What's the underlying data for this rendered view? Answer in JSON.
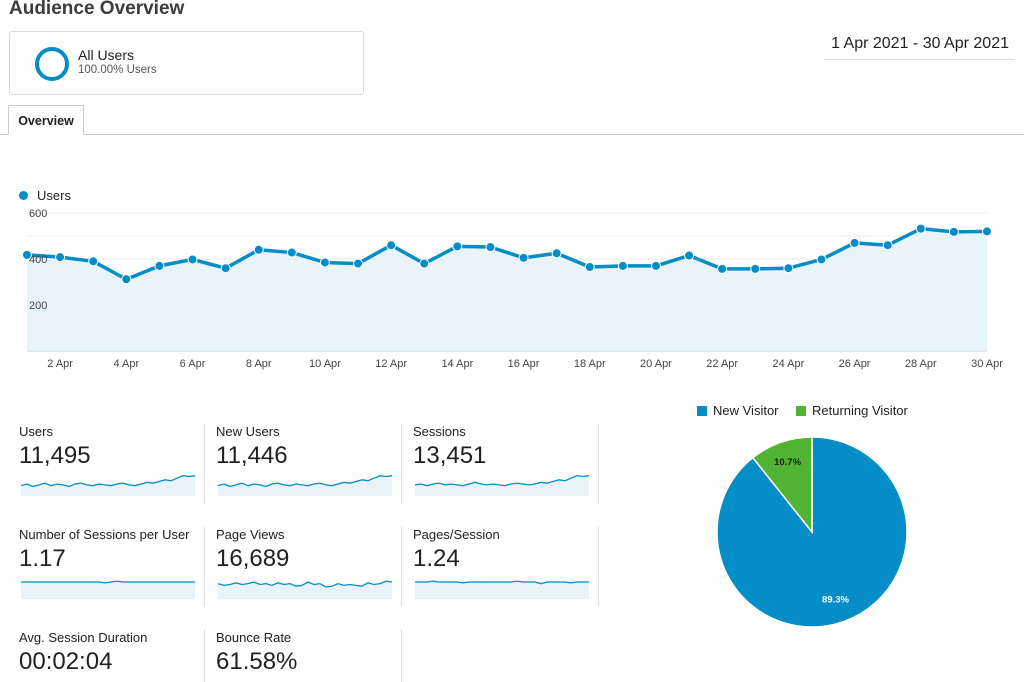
{
  "page": {
    "title": "Audience Overview"
  },
  "segment": {
    "name": "All Users",
    "share": "100.00% Users"
  },
  "date_range": "1 Apr 2021 - 30 Apr 2021",
  "tabs": [
    {
      "label": "Overview"
    }
  ],
  "colors": {
    "accent": "#058dc7",
    "new_visitor": "#058dc7",
    "returning_visitor": "#50b432",
    "area_fill": "#e8f3fa"
  },
  "chart_data": [
    {
      "type": "area",
      "legend": [
        "Users"
      ],
      "x": [
        "1 Apr",
        "2 Apr",
        "3 Apr",
        "4 Apr",
        "5 Apr",
        "6 Apr",
        "7 Apr",
        "8 Apr",
        "9 Apr",
        "10 Apr",
        "11 Apr",
        "12 Apr",
        "13 Apr",
        "14 Apr",
        "15 Apr",
        "16 Apr",
        "17 Apr",
        "18 Apr",
        "19 Apr",
        "20 Apr",
        "21 Apr",
        "22 Apr",
        "23 Apr",
        "24 Apr",
        "25 Apr",
        "26 Apr",
        "27 Apr",
        "28 Apr",
        "29 Apr",
        "30 Apr"
      ],
      "xticks": [
        "2 Apr",
        "4 Apr",
        "6 Apr",
        "8 Apr",
        "10 Apr",
        "12 Apr",
        "14 Apr",
        "16 Apr",
        "18 Apr",
        "20 Apr",
        "22 Apr",
        "24 Apr",
        "26 Apr",
        "28 Apr",
        "30 Apr"
      ],
      "yticks": [
        "200",
        "400",
        "600"
      ],
      "ylim": [
        0,
        600
      ],
      "series": [
        {
          "name": "Users",
          "values": [
            418,
            408,
            390,
            312,
            370,
            398,
            360,
            440,
            428,
            385,
            380,
            460,
            380,
            455,
            452,
            405,
            425,
            365,
            370,
            370,
            415,
            357,
            357,
            360,
            398,
            470,
            460,
            532,
            518,
            520
          ]
        }
      ]
    },
    {
      "type": "pie",
      "legend": [
        "New Visitor",
        "Returning Visitor"
      ],
      "slices": [
        {
          "name": "New Visitor",
          "value": 89.3,
          "label": "89.3%"
        },
        {
          "name": "Returning Visitor",
          "value": 10.7,
          "label": "10.7%"
        }
      ]
    }
  ],
  "metrics": [
    {
      "label": "Users",
      "value": "11,495",
      "spark": [
        10,
        12,
        9,
        11,
        13,
        10,
        12,
        11,
        9,
        12,
        13,
        11,
        10,
        12,
        11,
        10,
        12,
        13,
        11,
        10,
        12,
        14,
        13,
        15,
        17,
        16,
        19,
        22,
        21,
        22
      ]
    },
    {
      "label": "New Users",
      "value": "11,446",
      "spark": [
        10,
        12,
        9,
        11,
        13,
        10,
        12,
        11,
        9,
        12,
        13,
        11,
        10,
        12,
        11,
        10,
        12,
        13,
        11,
        10,
        12,
        14,
        13,
        15,
        17,
        16,
        19,
        22,
        21,
        22
      ]
    },
    {
      "label": "Sessions",
      "value": "13,451",
      "spark": [
        11,
        12,
        10,
        12,
        13,
        11,
        12,
        11,
        10,
        12,
        14,
        12,
        11,
        12,
        11,
        10,
        12,
        13,
        12,
        11,
        12,
        14,
        13,
        15,
        17,
        16,
        19,
        22,
        21,
        22
      ]
    },
    {
      "label": "Number of Sessions per User",
      "value": "1.17",
      "spark": [
        18,
        18,
        18,
        18,
        18,
        18,
        18,
        18,
        18,
        18,
        18,
        18,
        18,
        18,
        17,
        18,
        19,
        18,
        18,
        18,
        18,
        18,
        18,
        18,
        18,
        18,
        18,
        18,
        18,
        18
      ]
    },
    {
      "label": "Page Views",
      "value": "16,689",
      "spark": [
        16,
        14,
        15,
        17,
        15,
        16,
        18,
        15,
        16,
        14,
        17,
        15,
        16,
        13,
        14,
        18,
        15,
        16,
        12,
        13,
        16,
        14,
        15,
        14,
        13,
        17,
        15,
        16,
        19,
        18
      ]
    },
    {
      "label": "Pages/Session",
      "value": "1.24",
      "spark": [
        18,
        18,
        18,
        19,
        18,
        18,
        18,
        18,
        17,
        18,
        18,
        18,
        18,
        18,
        18,
        18,
        18,
        19,
        18,
        18,
        18,
        16,
        18,
        18,
        18,
        18,
        17,
        18,
        18,
        18
      ]
    },
    {
      "label": "Avg. Session Duration",
      "value": "00:02:04",
      "spark": [
        14,
        12,
        15,
        11,
        16,
        13,
        12,
        15,
        11,
        14,
        16,
        12,
        13,
        15,
        12,
        14,
        11,
        16,
        13,
        12,
        15,
        11,
        14,
        13,
        16,
        12,
        15,
        13,
        14,
        15
      ]
    },
    {
      "label": "Bounce Rate",
      "value": "61.58%",
      "spark": [
        14,
        15,
        13,
        15,
        14,
        16,
        13,
        15,
        14,
        13,
        16,
        14,
        15,
        13,
        14,
        16,
        14,
        15,
        13,
        16,
        14,
        15,
        14,
        13,
        15,
        16,
        14,
        15,
        16,
        17
      ]
    }
  ]
}
